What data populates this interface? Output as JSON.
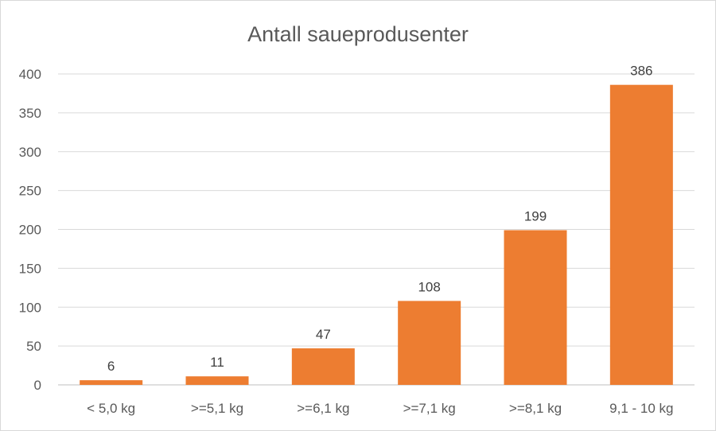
{
  "chart_data": {
    "type": "bar",
    "title": "Antall saueprodusenter",
    "xlabel": "",
    "ylabel": "",
    "categories": [
      "< 5,0 kg",
      ">=5,1 kg",
      ">=6,1 kg",
      ">=7,1 kg",
      ">=8,1 kg",
      "9,1 - 10 kg"
    ],
    "values": [
      6,
      11,
      47,
      108,
      199,
      386
    ],
    "ylim": [
      0,
      400
    ],
    "yticks": [
      0,
      50,
      100,
      150,
      200,
      250,
      300,
      350,
      400
    ],
    "grid": true,
    "legend": "none",
    "bar_color": "#ED7D31"
  }
}
